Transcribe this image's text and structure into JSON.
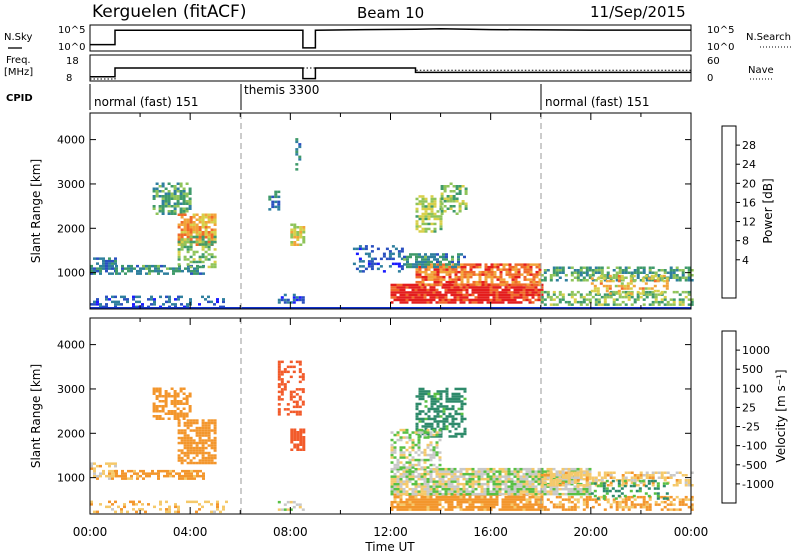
{
  "header": {
    "station": "Kerguelen (fitACF)",
    "beam": "Beam 10",
    "date": "11/Sep/2015"
  },
  "status_panels": {
    "nsky_label": "N.Sky",
    "nsearch_label": "N.Search",
    "nsky_ticks": [
      "10^5",
      "10^0"
    ],
    "nsearch_ticks": [
      "10^5",
      "10^0"
    ],
    "freq_label_1": "Freq.",
    "freq_label_2": "[MHz]",
    "freq_ticks": [
      "18",
      "8"
    ],
    "nave_label": "Nave",
    "nave_ticks": [
      "60",
      "0"
    ],
    "cpid_label": "CPID",
    "cpid_segments": [
      {
        "label": "normal (fast) 151",
        "start_h": 0
      },
      {
        "label": "themis 3300",
        "start_h": 6
      },
      {
        "label": "normal (fast) 151",
        "start_h": 18
      }
    ]
  },
  "time_axis": {
    "label": "Time UT",
    "ticks": [
      "00:00",
      "04:00",
      "08:00",
      "12:00",
      "16:00",
      "20:00",
      "00:00"
    ]
  },
  "power_panel": {
    "ylabel": "Slant Range [km]",
    "yticks": [
      "4000",
      "3000",
      "2000",
      "1000"
    ],
    "colorbar_label": "Power [dB]",
    "colorbar_ticks": [
      "28",
      "24",
      "20",
      "16",
      "12",
      "8",
      "4"
    ]
  },
  "velocity_panel": {
    "ylabel": "Slant Range [km]",
    "yticks": [
      "4000",
      "3000",
      "2000",
      "1000"
    ],
    "colorbar_label": "Velocity [m s⁻¹]",
    "colorbar_ticks": [
      "1000",
      "500",
      "100",
      "25",
      "-25",
      "-100",
      "-500",
      "-1000"
    ]
  },
  "chart_data": [
    {
      "type": "line",
      "title": "N.Sky / N.Search",
      "x_unit": "hours UT",
      "series": [
        {
          "name": "N.Sky",
          "points": [
            [
              0,
              0.2
            ],
            [
              1,
              0.2
            ],
            [
              1,
              0.85
            ],
            [
              8.5,
              0.85
            ],
            [
              8.5,
              0.05
            ],
            [
              9,
              0.05
            ],
            [
              9,
              0.85
            ],
            [
              11,
              0.88
            ],
            [
              13,
              0.9
            ],
            [
              14,
              0.92
            ],
            [
              16,
              0.88
            ],
            [
              20,
              0.86
            ],
            [
              24,
              0.86
            ]
          ]
        }
      ],
      "ylim": [
        0,
        1
      ]
    },
    {
      "type": "line",
      "title": "Freq / Nave",
      "x_unit": "hours UT",
      "series": [
        {
          "name": "Freq.",
          "points": [
            [
              0,
              9
            ],
            [
              1,
              9
            ],
            [
              1,
              13
            ],
            [
              8.5,
              13
            ],
            [
              8.5,
              8.2
            ],
            [
              9,
              8.2
            ],
            [
              9,
              13
            ],
            [
              13,
              13
            ],
            [
              13,
              11
            ],
            [
              24,
              11
            ]
          ]
        },
        {
          "name": "Nave",
          "points": [
            [
              0,
              8
            ],
            [
              1,
              8
            ],
            [
              1,
              13
            ],
            [
              8.5,
              13
            ],
            [
              9,
              13
            ],
            [
              13,
              13
            ],
            [
              13,
              12
            ],
            [
              24,
              12
            ]
          ]
        }
      ],
      "ylim_freq": [
        8,
        18
      ],
      "ylim_nave": [
        0,
        60
      ]
    },
    {
      "type": "heatmap",
      "title": "Power",
      "xlabel": "Time UT",
      "ylabel": "Slant Range [km]",
      "xlim_hours": [
        0,
        24
      ],
      "ylim_km": [
        180,
        4600
      ],
      "clim_db": [
        0,
        30
      ],
      "regions": [
        {
          "t0": 0,
          "t1": 1,
          "r0": 950,
          "r1": 1300,
          "v": 8,
          "d": 0.7
        },
        {
          "t0": 1,
          "t1": 4.5,
          "r0": 950,
          "r1": 1150,
          "v": 10,
          "d": 0.65
        },
        {
          "t0": 2.5,
          "t1": 4,
          "r0": 2300,
          "r1": 3000,
          "v": 12,
          "d": 0.6
        },
        {
          "t0": 3.5,
          "t1": 5,
          "r0": 1600,
          "r1": 2300,
          "v": 22,
          "d": 0.8
        },
        {
          "t0": 3.5,
          "t1": 5,
          "r0": 1100,
          "r1": 1800,
          "v": 14,
          "d": 0.55
        },
        {
          "t0": 0,
          "t1": 5.5,
          "r0": 200,
          "r1": 450,
          "v": 6,
          "d": 0.35
        },
        {
          "t0": 7,
          "t1": 7.5,
          "r0": 2400,
          "r1": 2800,
          "v": 8,
          "d": 0.4
        },
        {
          "t0": 8,
          "t1": 8.5,
          "r0": 1600,
          "r1": 2100,
          "v": 18,
          "d": 0.7
        },
        {
          "t0": 8.2,
          "t1": 8.4,
          "r0": 3300,
          "r1": 4000,
          "v": 10,
          "d": 0.5
        },
        {
          "t0": 7.5,
          "t1": 8.5,
          "r0": 300,
          "r1": 500,
          "v": 6,
          "d": 0.4
        },
        {
          "t0": 10.5,
          "t1": 12.5,
          "r0": 1000,
          "r1": 1600,
          "v": 6,
          "d": 0.35
        },
        {
          "t0": 13,
          "t1": 14,
          "r0": 1900,
          "r1": 2700,
          "v": 16,
          "d": 0.6
        },
        {
          "t0": 14,
          "t1": 15,
          "r0": 2300,
          "r1": 3000,
          "v": 14,
          "d": 0.5
        },
        {
          "t0": 12,
          "t1": 18,
          "r0": 300,
          "r1": 700,
          "v": 28,
          "d": 0.9
        },
        {
          "t0": 13,
          "t1": 18,
          "r0": 700,
          "r1": 1200,
          "v": 24,
          "d": 0.8
        },
        {
          "t0": 12.5,
          "t1": 15,
          "r0": 1100,
          "r1": 1400,
          "v": 10,
          "d": 0.6
        },
        {
          "t0": 18,
          "t1": 24,
          "r0": 800,
          "r1": 1100,
          "v": 12,
          "d": 0.6
        },
        {
          "t0": 18,
          "t1": 24,
          "r0": 250,
          "r1": 550,
          "v": 14,
          "d": 0.55
        },
        {
          "t0": 20,
          "t1": 23,
          "r0": 500,
          "r1": 900,
          "v": 20,
          "d": 0.4
        }
      ]
    },
    {
      "type": "heatmap",
      "title": "Velocity",
      "xlabel": "Time UT",
      "ylabel": "Slant Range [km]",
      "xlim_hours": [
        0,
        24
      ],
      "ylim_km": [
        180,
        4600
      ],
      "clim_ms": [
        -1000,
        1000
      ],
      "regions": [
        {
          "t0": 0,
          "t1": 1,
          "r0": 950,
          "r1": 1300,
          "v": -60,
          "d": 0.6
        },
        {
          "t0": 1,
          "t1": 4.5,
          "r0": 950,
          "r1": 1150,
          "v": -150,
          "d": 0.6
        },
        {
          "t0": 2.5,
          "t1": 4,
          "r0": 2300,
          "r1": 3000,
          "v": -200,
          "d": 0.55
        },
        {
          "t0": 3.5,
          "t1": 5,
          "r0": 1300,
          "r1": 2300,
          "v": -400,
          "d": 0.75
        },
        {
          "t0": 0,
          "t1": 5.5,
          "r0": 200,
          "r1": 450,
          "v": -80,
          "d": 0.3
        },
        {
          "t0": 8,
          "t1": 8.5,
          "r0": 1600,
          "r1": 2100,
          "v": -900,
          "d": 0.7
        },
        {
          "t0": 7.5,
          "t1": 8.5,
          "r0": 2400,
          "r1": 3600,
          "v": -600,
          "d": 0.35
        },
        {
          "t0": 7.5,
          "t1": 8.5,
          "r0": 250,
          "r1": 450,
          "v": 10,
          "d": 0.4
        },
        {
          "t0": 13,
          "t1": 15,
          "r0": 1900,
          "r1": 3000,
          "v": 150,
          "d": 0.55
        },
        {
          "t0": 12,
          "t1": 18,
          "r0": 250,
          "r1": 600,
          "v": -150,
          "d": 0.85
        },
        {
          "t0": 12,
          "t1": 20,
          "r0": 600,
          "r1": 1200,
          "v": 0,
          "d": 0.85
        },
        {
          "t0": 12,
          "t1": 14,
          "r0": 1200,
          "r1": 2100,
          "v": 5,
          "d": 0.5
        },
        {
          "t0": 18,
          "t1": 24,
          "r0": 800,
          "r1": 1100,
          "v": -60,
          "d": 0.55
        },
        {
          "t0": 18,
          "t1": 24,
          "r0": 250,
          "r1": 550,
          "v": -120,
          "d": 0.5
        },
        {
          "t0": 20,
          "t1": 23,
          "r0": 500,
          "r1": 900,
          "v": 100,
          "d": 0.3
        }
      ]
    }
  ]
}
